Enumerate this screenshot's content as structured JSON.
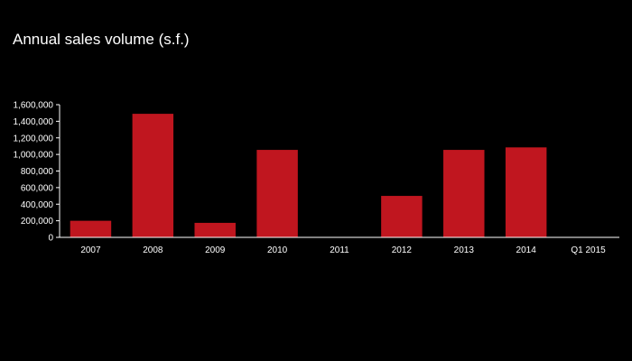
{
  "chart_data": {
    "type": "bar",
    "title": "Annual sales volume (s.f.)",
    "xlabel": "",
    "ylabel": "",
    "categories": [
      "2007",
      "2008",
      "2009",
      "2010",
      "2011",
      "2012",
      "2013",
      "2014",
      "Q1 2015"
    ],
    "values": [
      200000,
      1490000,
      175000,
      1055000,
      0,
      500000,
      1055000,
      1085000,
      0
    ],
    "ylim": [
      0,
      1600000
    ],
    "yticks": [
      0,
      200000,
      400000,
      600000,
      800000,
      1000000,
      1200000,
      1400000,
      1600000
    ],
    "ytick_labels": [
      "0",
      "200,000",
      "400,000",
      "600,000",
      "800,000",
      "1,000,000",
      "1,200,000",
      "1,400,000",
      "1,600,000"
    ],
    "grid": false,
    "legend": "none",
    "colors": {
      "bar": "#c0161f",
      "background": "#000000",
      "text": "#ffffff",
      "axis": "#ffffff"
    }
  }
}
